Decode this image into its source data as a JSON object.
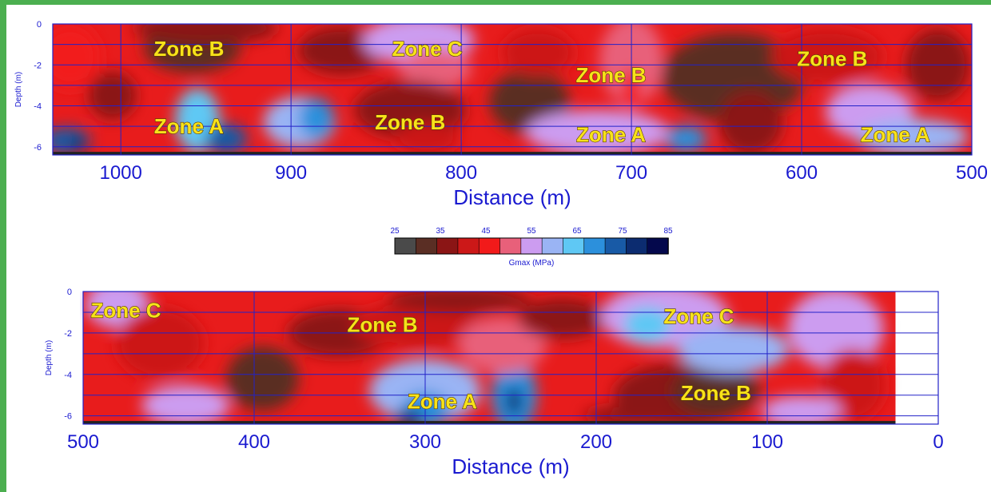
{
  "chart_data": [
    {
      "type": "heatmap",
      "xlabel": "Distance (m)",
      "ylabel": "Depth (m)",
      "xlim": [
        1040,
        500
      ],
      "ylim": [
        -6.4,
        0
      ],
      "x_ticks": [
        "1000",
        "900",
        "800",
        "700",
        "600",
        "500"
      ],
      "y_ticks": [
        "0",
        "-2",
        "-4",
        "-6"
      ],
      "grid": true,
      "zones": [
        {
          "label": "Zone B",
          "x": 960,
          "y": -1.2
        },
        {
          "label": "Zone C",
          "x": 820,
          "y": -1.2
        },
        {
          "label": "Zone B",
          "x": 712,
          "y": -2.5
        },
        {
          "label": "Zone B",
          "x": 582,
          "y": -1.7
        },
        {
          "label": "Zone A",
          "x": 960,
          "y": -5.0
        },
        {
          "label": "Zone B",
          "x": 830,
          "y": -4.8
        },
        {
          "label": "Zone A",
          "x": 712,
          "y": -5.4
        },
        {
          "label": "Zone A",
          "x": 545,
          "y": -5.4
        }
      ]
    },
    {
      "type": "heatmap",
      "xlabel": "Distance (m)",
      "ylabel": "Depth (m)",
      "xlim": [
        500,
        0
      ],
      "ylim": [
        -6.4,
        0
      ],
      "data_extent_x": [
        500,
        25
      ],
      "x_ticks": [
        "500",
        "400",
        "300",
        "200",
        "100",
        "0"
      ],
      "y_ticks": [
        "0",
        "-2",
        "-4",
        "-6"
      ],
      "grid": true,
      "zones": [
        {
          "label": "Zone C",
          "x": 475,
          "y": -0.9
        },
        {
          "label": "Zone B",
          "x": 325,
          "y": -1.6
        },
        {
          "label": "Zone C",
          "x": 140,
          "y": -1.2
        },
        {
          "label": "Zone B",
          "x": 130,
          "y": -4.9
        },
        {
          "label": "Zone A",
          "x": 290,
          "y": -5.3
        }
      ]
    }
  ],
  "colorbar": {
    "title": "Gmax (MPa)",
    "tick_labels": [
      "25",
      "35",
      "45",
      "55",
      "65",
      "75",
      "85"
    ],
    "colors": [
      "#4a4a4a",
      "#5a2e24",
      "#8b1515",
      "#cc1818",
      "#f21a1a",
      "#e8607a",
      "#cc9cf0",
      "#9ab4f4",
      "#5fc8f4",
      "#2c90dc",
      "#185aa6",
      "#0c2c70",
      "#04084c"
    ]
  }
}
